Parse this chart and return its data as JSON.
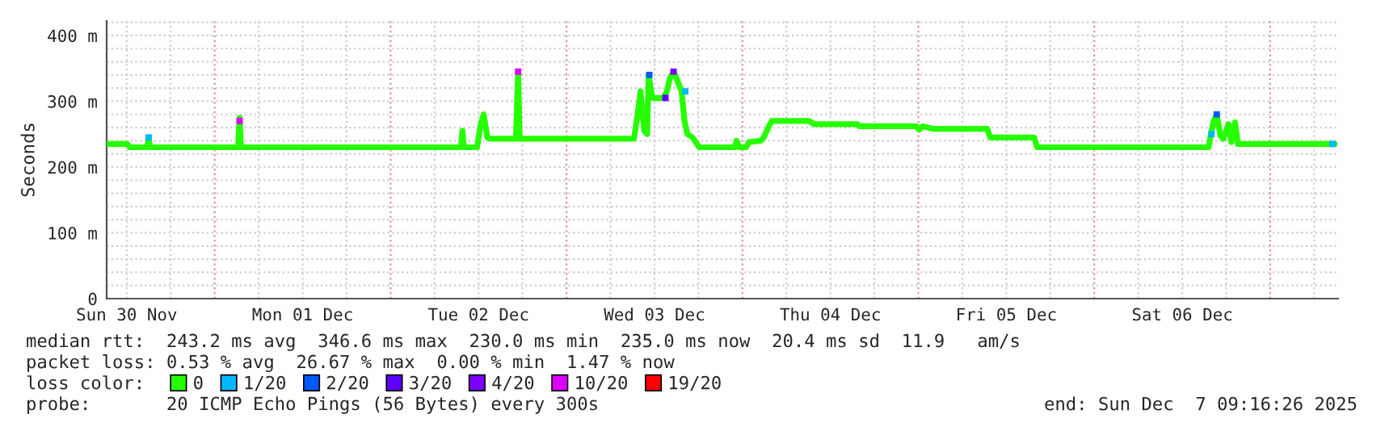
{
  "chart_data": {
    "type": "line",
    "ylabel": "Seconds",
    "legend_title": "loss color:",
    "legend": "bottom",
    "grid": true,
    "line_style": "solid",
    "xlim": [
      "2025-11-30T09:16",
      "2025-12-07T09:16"
    ],
    "xticks": [
      {
        "value": "2025-11-30T12:00",
        "label": "Sun 30 Nov"
      },
      {
        "value": "2025-11-30T18:00",
        "label": null
      },
      {
        "value": "2025-12-01T06:00",
        "label": null
      },
      {
        "value": "2025-12-01T12:00",
        "label": "Mon 01 Dec"
      },
      {
        "value": "2025-12-01T18:00",
        "label": null
      },
      {
        "value": "2025-12-02T06:00",
        "label": null
      },
      {
        "value": "2025-12-02T12:00",
        "label": "Tue 02 Dec"
      },
      {
        "value": "2025-12-02T18:00",
        "label": null
      },
      {
        "value": "2025-12-03T06:00",
        "label": null
      },
      {
        "value": "2025-12-03T12:00",
        "label": "Wed 03 Dec"
      },
      {
        "value": "2025-12-03T18:00",
        "label": null
      },
      {
        "value": "2025-12-04T06:00",
        "label": null
      },
      {
        "value": "2025-12-04T12:00",
        "label": "Thu 04 Dec"
      },
      {
        "value": "2025-12-04T18:00",
        "label": null
      },
      {
        "value": "2025-12-05T06:00",
        "label": null
      },
      {
        "value": "2025-12-05T12:00",
        "label": "Fri 05 Dec"
      },
      {
        "value": "2025-12-05T18:00",
        "label": null
      },
      {
        "value": "2025-12-06T06:00",
        "label": null
      },
      {
        "value": "2025-12-06T12:00",
        "label": "Sat 06 Dec"
      },
      {
        "value": "2025-12-06T18:00",
        "label": null
      },
      {
        "value": "2025-12-07T06:00",
        "label": null
      }
    ],
    "ylim": [
      0,
      422
    ],
    "yticks": [
      0,
      {
        "value": 20,
        "label": null
      },
      {
        "value": 40,
        "label": null
      },
      {
        "value": 60,
        "label": null
      },
      {
        "value": 80,
        "label": null
      },
      {
        "value": 100,
        "label": "100 m"
      },
      {
        "value": 120,
        "label": null
      },
      {
        "value": 140,
        "label": null
      },
      {
        "value": 160,
        "label": null
      },
      {
        "value": 180,
        "label": null
      },
      {
        "value": 200,
        "label": "200 m"
      },
      {
        "value": 220,
        "label": null
      },
      {
        "value": 240,
        "label": null
      },
      {
        "value": 260,
        "label": null
      },
      {
        "value": 280,
        "label": null
      },
      {
        "value": 300,
        "label": "300 m"
      },
      {
        "value": 320,
        "label": null
      },
      {
        "value": 340,
        "label": null
      },
      {
        "value": 360,
        "label": null
      },
      {
        "value": 380,
        "label": null
      },
      {
        "value": 400,
        "label": "400 m"
      },
      {
        "value": 420,
        "label": null
      }
    ],
    "ref_lines": [
      {
        "axis": "x",
        "value": "2025-12-01T00:00",
        "color": "#e09090",
        "line_style": "dotted"
      },
      {
        "axis": "x",
        "value": "2025-12-02T00:00",
        "color": "#e09090",
        "line_style": "dotted"
      },
      {
        "axis": "x",
        "value": "2025-12-03T00:00",
        "color": "#e09090",
        "line_style": "dotted"
      },
      {
        "axis": "x",
        "value": "2025-12-04T00:00",
        "color": "#e09090",
        "line_style": "dotted"
      },
      {
        "axis": "x",
        "value": "2025-12-05T00:00",
        "color": "#e09090",
        "line_style": "dotted"
      },
      {
        "axis": "x",
        "value": "2025-12-06T00:00",
        "color": "#e09090",
        "line_style": "dotted"
      },
      {
        "axis": "x",
        "value": "2025-12-07T00:00",
        "color": "#e09090",
        "line_style": "dotted"
      }
    ],
    "series": [
      {
        "name": "0",
        "color": "#26ff00",
        "x": [
          "2025-11-30T09:18",
          "2025-11-30T12:06",
          "2025-11-30T12:24",
          "2025-11-30T14:48",
          "2025-11-30T15:00",
          "2025-11-30T15:12",
          "2025-12-01T03:12",
          "2025-12-01T03:24",
          "2025-12-01T03:36",
          "2025-12-02T09:36",
          "2025-12-02T09:48",
          "2025-12-02T10:00",
          "2025-12-02T11:48",
          "2025-12-02T12:18",
          "2025-12-02T12:42",
          "2025-12-02T13:12",
          "2025-12-02T13:36",
          "2025-12-02T17:06",
          "2025-12-02T17:24",
          "2025-12-02T17:36",
          "2025-12-03T09:12",
          "2025-12-03T09:42",
          "2025-12-03T10:06",
          "2025-12-03T10:36",
          "2025-12-03T11:00",
          "2025-12-03T11:12",
          "2025-12-03T11:42",
          "2025-12-03T13:12",
          "2025-12-03T13:42",
          "2025-12-03T14:06",
          "2025-12-03T14:36",
          "2025-12-03T15:00",
          "2025-12-03T15:42",
          "2025-12-03T16:06",
          "2025-12-03T16:30",
          "2025-12-03T17:12",
          "2025-12-03T18:06",
          "2025-12-03T23:00",
          "2025-12-03T23:12",
          "2025-12-03T23:36",
          "2025-12-04T00:30",
          "2025-12-04T00:54",
          "2025-12-04T02:30",
          "2025-12-04T02:54",
          "2025-12-04T03:36",
          "2025-12-04T04:00",
          "2025-12-04T09:06",
          "2025-12-04T09:48",
          "2025-12-04T15:42",
          "2025-12-04T15:54",
          "2025-12-04T23:42",
          "2025-12-05T00:06",
          "2025-12-05T00:36",
          "2025-12-05T02:06",
          "2025-12-05T09:24",
          "2025-12-05T09:48",
          "2025-12-05T15:48",
          "2025-12-05T16:12",
          "2025-12-06T15:36",
          "2025-12-06T15:54",
          "2025-12-06T16:18",
          "2025-12-06T16:42",
          "2025-12-06T17:12",
          "2025-12-06T17:36",
          "2025-12-06T18:18",
          "2025-12-06T18:42",
          "2025-12-06T19:12",
          "2025-12-06T19:36",
          "2025-12-07T08:48"
        ],
        "values": [
          235,
          235,
          230,
          230,
          245,
          230,
          230,
          275,
          230,
          230,
          255,
          230,
          230,
          265,
          280,
          245,
          243,
          243,
          345,
          243,
          243,
          280,
          315,
          255,
          250,
          340,
          305,
          305,
          315,
          335,
          345,
          335,
          315,
          270,
          250,
          245,
          230,
          230,
          240,
          230,
          230,
          238,
          240,
          245,
          262,
          270,
          270,
          265,
          265,
          262,
          262,
          257,
          262,
          258,
          258,
          245,
          245,
          230,
          230,
          250,
          270,
          280,
          248,
          243,
          265,
          238,
          268,
          235,
          235
        ]
      },
      {
        "name": "1/20",
        "color": "#00b8ff",
        "type": "scatter",
        "x": [
          "2025-11-30T15:00",
          "2025-12-03T16:12",
          "2025-12-06T16:00",
          "2025-12-07T08:30"
        ],
        "values": [
          245,
          315,
          250,
          235
        ]
      },
      {
        "name": "2/20",
        "color": "#0059ff",
        "type": "scatter",
        "x": [
          "2025-12-03T11:18",
          "2025-12-06T16:42"
        ],
        "values": [
          340,
          280
        ]
      },
      {
        "name": "3/20",
        "color": "#5e00ff",
        "type": "scatter",
        "x": [
          "2025-12-03T13:30"
        ],
        "values": [
          305
        ]
      },
      {
        "name": "4/20",
        "color": "#7e00ff",
        "type": "scatter",
        "x": [
          "2025-12-03T14:36"
        ],
        "values": [
          345
        ]
      },
      {
        "name": "10/20",
        "color": "#dd00ff",
        "type": "scatter",
        "x": [
          "2025-12-01T03:24",
          "2025-12-02T17:24"
        ],
        "values": [
          270,
          345
        ]
      },
      {
        "name": "19/20",
        "color": "#ff0000",
        "type": "scatter"
      }
    ],
    "annotations": [
      "median rtt:  243.2 ms avg  346.6 ms max  230.0 ms min  235.0 ms now  20.4 ms sd  11.9   am/s",
      "packet loss: 0.53 % avg  26.67 % max  0.00 % min  1.47 % now",
      "probe:       20 ICMP Echo Pings (56 Bytes) every 300s",
      "end: Sun Dec  7 09:16:26 2025"
    ]
  }
}
